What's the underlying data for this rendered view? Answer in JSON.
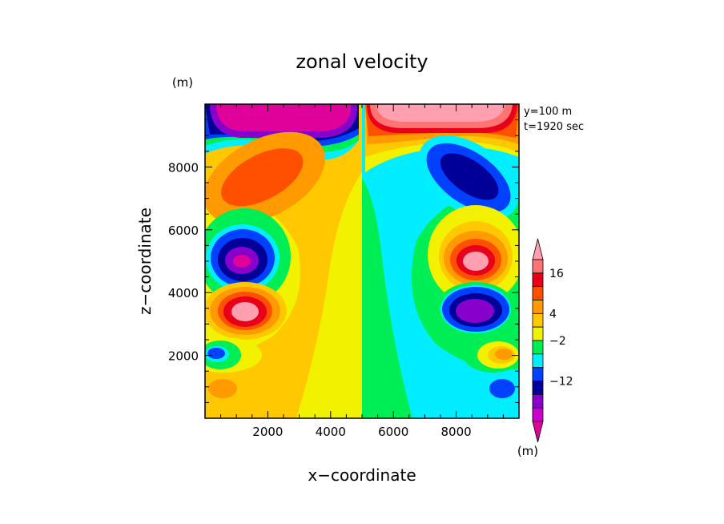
{
  "chart_data": {
    "type": "heatmap",
    "title": "zonal velocity",
    "xlabel": "x−coordinate",
    "ylabel": "z−coordinate",
    "y_unit": "(m)",
    "colorbar_unit": "(m)",
    "info": [
      "y=100 m",
      "t=1920 sec"
    ],
    "xlim": [
      0,
      10000
    ],
    "ylim": [
      0,
      10000
    ],
    "x_ticks": [
      {
        "value": 2000,
        "label": "2000"
      },
      {
        "value": 4000,
        "label": "4000"
      },
      {
        "value": 6000,
        "label": "6000"
      },
      {
        "value": 8000,
        "label": "8000"
      }
    ],
    "y_ticks": [
      {
        "value": 2000,
        "label": "2000"
      },
      {
        "value": 4000,
        "label": "4000"
      },
      {
        "value": 6000,
        "label": "6000"
      },
      {
        "value": 8000,
        "label": "8000"
      }
    ],
    "colorbar": {
      "labels": [
        {
          "level_index": 1,
          "label": "16"
        },
        {
          "level_index": 4,
          "label": "4"
        },
        {
          "level_index": 6,
          "label": "−2"
        },
        {
          "level_index": 9,
          "label": "−12"
        }
      ],
      "colors_top_to_bottom": [
        "#ff9fb0",
        "#ff7373",
        "#e8001a",
        "#ff5000",
        "#ff9a00",
        "#ffc800",
        "#f2f200",
        "#00ee55",
        "#00eeff",
        "#0040ff",
        "#000099",
        "#8800cc",
        "#cc00cc",
        "#e0009a"
      ]
    },
    "features": [
      {
        "type": "jet",
        "level": -18,
        "x_range": [
          0,
          4800
        ],
        "z": 9500,
        "description": "strong westward flow at top left"
      },
      {
        "type": "jet",
        "level": 18,
        "x_range": [
          5100,
          10000
        ],
        "z": 9500,
        "description": "strong eastward flow at top right"
      },
      {
        "type": "cell",
        "x": 2200,
        "z": 7800,
        "peak": 9
      },
      {
        "type": "cell",
        "x": 8000,
        "z": 7800,
        "peak": -14
      },
      {
        "type": "cell",
        "x": 1400,
        "z": 4900,
        "peak": -18
      },
      {
        "type": "cell",
        "x": 8500,
        "z": 4900,
        "peak": 18
      },
      {
        "type": "cell",
        "x": 1300,
        "z": 3400,
        "peak": 18
      },
      {
        "type": "cell",
        "x": 8600,
        "z": 3300,
        "peak": -18
      },
      {
        "type": "cell",
        "x": 400,
        "z": 2000,
        "peak": -8
      },
      {
        "type": "cell",
        "x": 9500,
        "z": 2000,
        "peak": 8
      },
      {
        "type": "cell",
        "x": 500,
        "z": 900,
        "peak": 7
      },
      {
        "type": "cell",
        "x": 9400,
        "z": 900,
        "peak": -7
      }
    ]
  }
}
